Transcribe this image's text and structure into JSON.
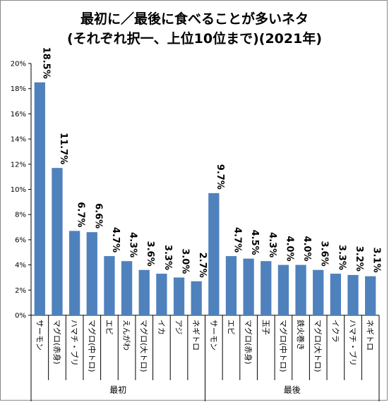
{
  "chart_data": {
    "type": "bar",
    "title": "最初に／最後に食べることが多いネタ",
    "subtitle": "(それぞれ択一、上位10位まで)(2021年)",
    "ylim": [
      0,
      20
    ],
    "yticks": [
      "0%",
      "2%",
      "4%",
      "6%",
      "8%",
      "10%",
      "12%",
      "14%",
      "16%",
      "18%",
      "20%"
    ],
    "bar_color": "#4f81bd",
    "groups": [
      {
        "name": "最初",
        "categories": [
          "サーモン",
          "マグロ(赤身)",
          "ハマチ・ブリ",
          "マグロ(中トロ)",
          "エビ",
          "えんがわ",
          "マグロ(大トロ)",
          "イカ",
          "アジ",
          "ネギトロ"
        ],
        "values": [
          18.5,
          11.7,
          6.7,
          6.6,
          4.7,
          4.3,
          3.6,
          3.3,
          3.0,
          2.7
        ],
        "labels": [
          "18.5%",
          "11.7%",
          "6.7%",
          "6.6%",
          "4.7%",
          "4.3%",
          "3.6%",
          "3.3%",
          "3.0%",
          "2.7%"
        ]
      },
      {
        "name": "最後",
        "categories": [
          "サーモン",
          "エビ",
          "マグロ(赤身)",
          "玉子",
          "マグロ(中トロ)",
          "鉄火巻き",
          "マグロ(大トロ)",
          "イクラ",
          "ハマチ・ブリ",
          "ネギトロ"
        ],
        "values": [
          9.7,
          4.7,
          4.5,
          4.3,
          4.0,
          4.0,
          3.6,
          3.3,
          3.2,
          3.1
        ],
        "labels": [
          "9.7%",
          "4.7%",
          "4.5%",
          "4.3%",
          "4.0%",
          "4.0%",
          "3.6%",
          "3.3%",
          "3.2%",
          "3.1%"
        ]
      }
    ]
  }
}
